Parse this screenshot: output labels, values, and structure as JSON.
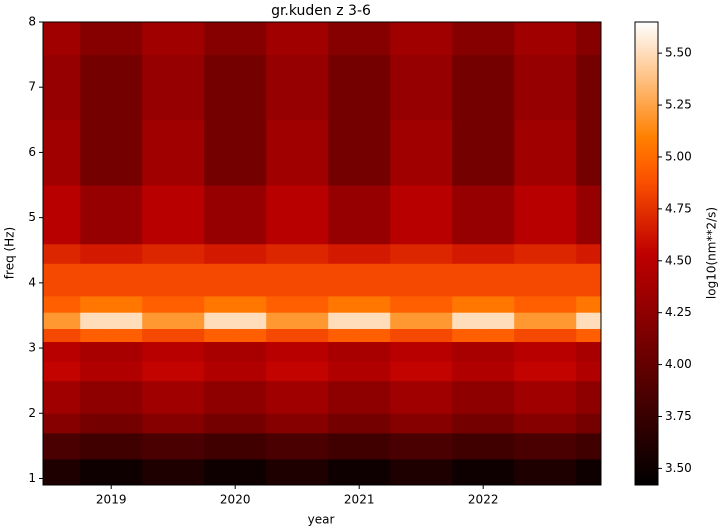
{
  "chart_data": {
    "type": "heatmap",
    "title": "gr.kuden z 3-6",
    "x_label": "year",
    "y_label": "freq (Hz)",
    "colorbar_label": "log10(nm**2/s)",
    "colormap": "gist_heat",
    "xlim": [
      2018.45,
      2022.95
    ],
    "xticks": [
      2019,
      2020,
      2021,
      2022
    ],
    "ylim": [
      0.9,
      8
    ],
    "yticks": [
      1,
      2,
      3,
      4,
      5,
      6,
      7,
      8
    ],
    "clim": [
      3.42,
      5.65
    ],
    "cticks": [
      {
        "value": 3.5,
        "label": "3.50"
      },
      {
        "value": 3.75,
        "label": "3.75"
      },
      {
        "value": 4,
        "label": "4.00"
      },
      {
        "value": 4.25,
        "label": "4.25"
      },
      {
        "value": 4.5,
        "label": "4.50"
      },
      {
        "value": 4.75,
        "label": "4.75"
      },
      {
        "value": 5,
        "label": "5.00"
      },
      {
        "value": 5.25,
        "label": "5.25"
      },
      {
        "value": 5.5,
        "label": "5.50"
      }
    ],
    "x_edges": [
      2018.45,
      2018.75,
      2019,
      2019.25,
      2019.5,
      2019.75,
      2020,
      2020.25,
      2020.5,
      2020.75,
      2021,
      2021.25,
      2021.5,
      2021.75,
      2022,
      2022.25,
      2022.5,
      2022.75,
      2022.95
    ],
    "y_edges": [
      0.9,
      1.3,
      1.7,
      2,
      2.5,
      2.8,
      3.1,
      3.3,
      3.55,
      3.8,
      4.3,
      4.6,
      5.5,
      6.5,
      7.5,
      8
    ],
    "z": [
      [
        3.6,
        3.5,
        3.5,
        3.6,
        3.6,
        3.5,
        3.5,
        3.6,
        3.6,
        3.5,
        3.5,
        3.6,
        3.6,
        3.5,
        3.5,
        3.6,
        3.6,
        3.5
      ],
      [
        3.85,
        3.8,
        3.8,
        3.85,
        3.85,
        3.8,
        3.8,
        3.85,
        3.85,
        3.8,
        3.8,
        3.85,
        3.85,
        3.8,
        3.8,
        3.85,
        3.85,
        3.8
      ],
      [
        4.2,
        4.1,
        4.1,
        4.2,
        4.2,
        4.1,
        4.1,
        4.2,
        4.2,
        4.1,
        4.1,
        4.2,
        4.2,
        4.1,
        4.1,
        4.2,
        4.2,
        4.1
      ],
      [
        4.35,
        4.25,
        4.25,
        4.35,
        4.35,
        4.25,
        4.25,
        4.35,
        4.35,
        4.25,
        4.25,
        4.35,
        4.35,
        4.25,
        4.25,
        4.35,
        4.35,
        4.25
      ],
      [
        4.55,
        4.45,
        4.45,
        4.55,
        4.55,
        4.45,
        4.45,
        4.55,
        4.55,
        4.45,
        4.45,
        4.55,
        4.55,
        4.45,
        4.45,
        4.55,
        4.55,
        4.45
      ],
      [
        4.5,
        4.4,
        4.4,
        4.5,
        4.5,
        4.4,
        4.4,
        4.5,
        4.5,
        4.4,
        4.4,
        4.5,
        4.5,
        4.4,
        4.4,
        4.5,
        4.5,
        4.4
      ],
      [
        4.85,
        4.95,
        4.95,
        4.85,
        4.85,
        4.95,
        4.95,
        4.85,
        4.85,
        4.95,
        4.95,
        4.85,
        4.85,
        4.95,
        4.95,
        4.85,
        4.85,
        4.95
      ],
      [
        5.2,
        5.5,
        5.5,
        5.2,
        5.2,
        5.5,
        5.5,
        5.2,
        5.2,
        5.5,
        5.5,
        5.2,
        5.2,
        5.5,
        5.5,
        5.2,
        5.2,
        5.5
      ],
      [
        4.95,
        5.05,
        5.05,
        4.95,
        4.95,
        5.05,
        5.05,
        4.95,
        4.95,
        5.05,
        5.05,
        4.95,
        4.95,
        5.05,
        5.05,
        4.95,
        4.95,
        5.05
      ],
      [
        4.85,
        4.85,
        4.85,
        4.85,
        4.85,
        4.85,
        4.85,
        4.85,
        4.85,
        4.85,
        4.85,
        4.85,
        4.85,
        4.85,
        4.85,
        4.85,
        4.85,
        4.85
      ],
      [
        4.7,
        4.65,
        4.65,
        4.7,
        4.7,
        4.65,
        4.65,
        4.7,
        4.7,
        4.65,
        4.65,
        4.7,
        4.7,
        4.65,
        4.65,
        4.7,
        4.7,
        4.65
      ],
      [
        4.5,
        4.3,
        4.3,
        4.5,
        4.5,
        4.3,
        4.3,
        4.5,
        4.5,
        4.3,
        4.3,
        4.5,
        4.5,
        4.3,
        4.3,
        4.5,
        4.5,
        4.3
      ],
      [
        4.35,
        4.1,
        4.1,
        4.35,
        4.35,
        4.1,
        4.1,
        4.35,
        4.35,
        4.1,
        4.1,
        4.35,
        4.35,
        4.1,
        4.1,
        4.35,
        4.35,
        4.1
      ],
      [
        4.3,
        4.1,
        4.1,
        4.3,
        4.3,
        4.1,
        4.1,
        4.3,
        4.3,
        4.1,
        4.1,
        4.3,
        4.3,
        4.1,
        4.1,
        4.3,
        4.3,
        4.1
      ],
      [
        4.35,
        4.2,
        4.2,
        4.35,
        4.35,
        4.2,
        4.2,
        4.35,
        4.35,
        4.2,
        4.2,
        4.35,
        4.35,
        4.2,
        4.2,
        4.35,
        4.35,
        4.2
      ]
    ]
  }
}
